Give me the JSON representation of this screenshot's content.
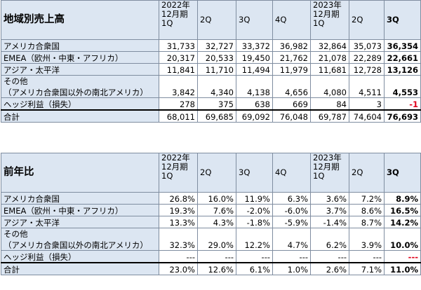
{
  "regional_sales": {
    "title": "地域別売上高",
    "headers": [
      "2022年\n12月期\n1Q",
      "2Q",
      "3Q",
      "4Q",
      "2023年\n12月期\n1Q",
      "2Q",
      "3Q"
    ],
    "rows": [
      {
        "label": "アメリカ合衆国",
        "label2": "",
        "values": [
          "31,733",
          "32,727",
          "33,372",
          "36,982",
          "32,864",
          "35,073",
          "36,354"
        ]
      },
      {
        "label": "EMEA（欧州・中東・アフリカ）",
        "label2": "",
        "values": [
          "20,317",
          "20,533",
          "19,450",
          "21,762",
          "21,078",
          "22,289",
          "22,661"
        ]
      },
      {
        "label": "アジア・太平洋",
        "label2": "",
        "values": [
          "11,841",
          "11,710",
          "11,494",
          "11,979",
          "11,681",
          "12,728",
          "13,126"
        ]
      },
      {
        "label": "その他",
        "label2": "（アメリカ合衆国以外の南北アメリカ）",
        "values": [
          "3,842",
          "4,340",
          "4,138",
          "4,656",
          "4,080",
          "4,511",
          "4,553"
        ]
      },
      {
        "label": "ヘッジ利益（損失）",
        "label2": "",
        "values": [
          "278",
          "375",
          "638",
          "669",
          "84",
          "3",
          "-1"
        ]
      }
    ],
    "total": {
      "label": "合計",
      "values": [
        "68,011",
        "69,685",
        "69,092",
        "76,048",
        "69,787",
        "74,604",
        "76,693"
      ]
    }
  },
  "yoy": {
    "title": "前年比",
    "headers": [
      "2022年\n12月期\n1Q",
      "2Q",
      "3Q",
      "4Q",
      "2023年\n12月期\n1Q",
      "2Q",
      "3Q"
    ],
    "rows": [
      {
        "label": "アメリカ合衆国",
        "label2": "",
        "values": [
          "26.8%",
          "16.0%",
          "11.9%",
          "6.3%",
          "3.6%",
          "7.2%",
          "8.9%"
        ]
      },
      {
        "label": "EMEA（欧州・中東・アフリカ）",
        "label2": "",
        "values": [
          "19.3%",
          "7.6%",
          "-2.0%",
          "-6.0%",
          "3.7%",
          "8.6%",
          "16.5%"
        ]
      },
      {
        "label": "アジア・太平洋",
        "label2": "",
        "values": [
          "13.3%",
          "4.3%",
          "-1.8%",
          "-5.9%",
          "-1.4%",
          "8.7%",
          "14.2%"
        ]
      },
      {
        "label": "その他",
        "label2": "（アメリカ合衆国以外の南北アメリカ）",
        "values": [
          "32.3%",
          "29.0%",
          "12.2%",
          "4.7%",
          "6.2%",
          "3.9%",
          "10.0%"
        ]
      },
      {
        "label": "ヘッジ利益（損失）",
        "label2": "",
        "values": [
          "---",
          "---",
          "---",
          "---",
          "---",
          "---",
          "---"
        ]
      }
    ],
    "total": {
      "label": "合計",
      "values": [
        "23.0%",
        "12.6%",
        "6.1%",
        "1.0%",
        "2.6%",
        "7.1%",
        "11.0%"
      ]
    }
  },
  "colors": {
    "label_bg": "#dce6f2",
    "negative": "#e0001a",
    "border": "#7f8da0"
  }
}
